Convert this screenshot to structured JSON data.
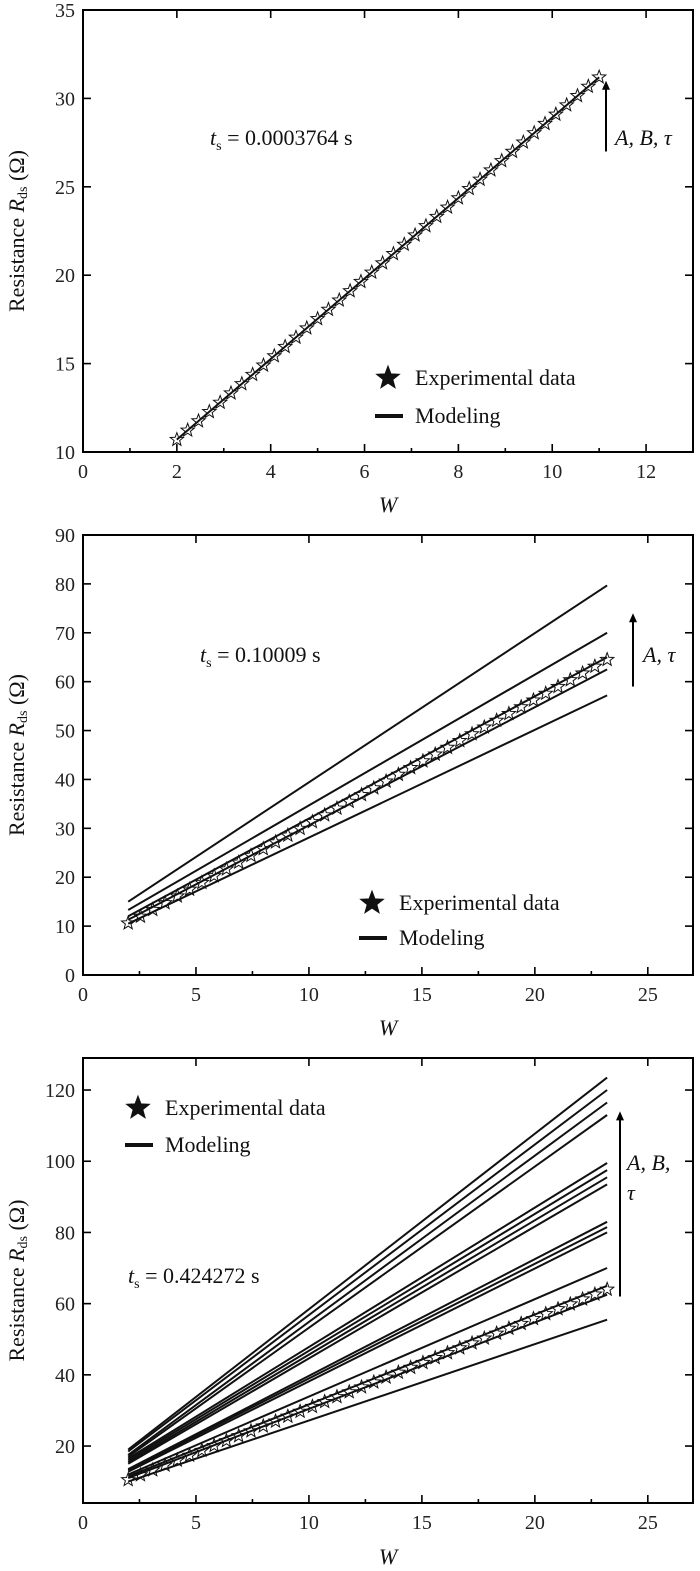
{
  "chart_data": [
    {
      "type": "line",
      "xlabel": "W",
      "ylabel_prefix": "Resistance ",
      "ylabel_var": "R",
      "ylabel_sub": "ds",
      "ylabel_unit": " (Ω)",
      "xlim": [
        0,
        13
      ],
      "ylim": [
        10,
        35
      ],
      "xticks": [
        "0",
        "2",
        "4",
        "6",
        "8",
        "10",
        "12"
      ],
      "xtick_values": [
        0,
        2,
        4,
        6,
        8,
        10,
        12
      ],
      "yticks": [
        "10",
        "15",
        "20",
        "25",
        "30",
        "35"
      ],
      "ytick_values": [
        10,
        15,
        20,
        25,
        30,
        35
      ],
      "annotation_var": "t",
      "annotation_sub": "s",
      "annotation_value": " = 0.0003764 s",
      "arrow_label_lines": [
        "A, B, τ"
      ],
      "arrow_range": [
        27,
        31
      ],
      "legend": [
        "Experimental data",
        "Modeling"
      ],
      "legend_position": "bottom-right",
      "experimental": {
        "x_start": 2,
        "x_end": 11,
        "points": 40,
        "y_start": 10.7,
        "y_end": 31.2
      },
      "model_lines": [
        {
          "x": [
            2,
            11
          ],
          "y": [
            10.7,
            31.2
          ]
        }
      ]
    },
    {
      "type": "line",
      "xlabel": "W",
      "ylabel_prefix": "Resistance ",
      "ylabel_var": "R",
      "ylabel_sub": "ds",
      "ylabel_unit": " (Ω)",
      "xlim": [
        0,
        27
      ],
      "ylim": [
        0,
        90
      ],
      "xticks": [
        "0",
        "5",
        "10",
        "15",
        "20",
        "25"
      ],
      "xtick_values": [
        0,
        5,
        10,
        15,
        20,
        25
      ],
      "yticks": [
        "0",
        "10",
        "20",
        "30",
        "40",
        "50",
        "60",
        "70",
        "80",
        "90"
      ],
      "ytick_values": [
        0,
        10,
        20,
        30,
        40,
        50,
        60,
        70,
        80,
        90
      ],
      "annotation_var": "t",
      "annotation_sub": "s",
      "annotation_value": " = 0.10009 s",
      "arrow_label_lines": [
        "A, τ"
      ],
      "arrow_range": [
        59,
        74
      ],
      "legend": [
        "Experimental data",
        "Modeling"
      ],
      "legend_position": "bottom-right",
      "experimental": {
        "x_start": 2,
        "x_end": 23.2,
        "points": 40,
        "y_start": 10.6,
        "y_end": 64.5
      },
      "model_lines": [
        {
          "x": [
            2,
            23.2
          ],
          "y": [
            15.0,
            79.7
          ]
        },
        {
          "x": [
            2,
            23.2
          ],
          "y": [
            13.3,
            70.0
          ]
        },
        {
          "x": [
            2,
            23.2
          ],
          "y": [
            12.0,
            65.0
          ]
        },
        {
          "x": [
            2,
            23.2
          ],
          "y": [
            11.3,
            62.5
          ]
        },
        {
          "x": [
            2,
            23.2
          ],
          "y": [
            10.5,
            57.2
          ]
        }
      ]
    },
    {
      "type": "line",
      "xlabel": "W",
      "ylabel_prefix": "Resistance ",
      "ylabel_var": "R",
      "ylabel_sub": "ds",
      "ylabel_unit": " (Ω)",
      "xlim": [
        0,
        27
      ],
      "ylim": [
        4,
        129
      ],
      "xticks": [
        "0",
        "5",
        "10",
        "15",
        "20",
        "25"
      ],
      "xtick_values": [
        0,
        5,
        10,
        15,
        20,
        25
      ],
      "yticks": [
        "20",
        "40",
        "60",
        "80",
        "100",
        "120"
      ],
      "ytick_values": [
        20,
        40,
        60,
        80,
        100,
        120
      ],
      "annotation_var": "t",
      "annotation_sub": "s",
      "annotation_value": " = 0.424272 s",
      "arrow_label_lines": [
        "A, B,",
        "τ"
      ],
      "arrow_range": [
        62,
        114
      ],
      "legend": [
        "Experimental data",
        "Modeling"
      ],
      "legend_position": "top-left",
      "experimental": {
        "x_start": 2,
        "x_end": 23.2,
        "points": 40,
        "y_start": 10.5,
        "y_end": 64.0
      },
      "model_lines": [
        {
          "x": [
            2,
            23.2
          ],
          "y": [
            19.0,
            123.5
          ]
        },
        {
          "x": [
            2,
            23.2
          ],
          "y": [
            18.5,
            120.0
          ]
        },
        {
          "x": [
            2,
            23.2
          ],
          "y": [
            17.5,
            116.5
          ]
        },
        {
          "x": [
            2,
            23.2
          ],
          "y": [
            17.0,
            113.0
          ]
        },
        {
          "x": [
            2,
            23.2
          ],
          "y": [
            16.5,
            99.5
          ]
        },
        {
          "x": [
            2,
            23.2
          ],
          "y": [
            16.0,
            97.5
          ]
        },
        {
          "x": [
            2,
            23.2
          ],
          "y": [
            15.5,
            95.5
          ]
        },
        {
          "x": [
            2,
            23.2
          ],
          "y": [
            15.0,
            93.5
          ]
        },
        {
          "x": [
            2,
            23.2
          ],
          "y": [
            13.5,
            83.0
          ]
        },
        {
          "x": [
            2,
            23.2
          ],
          "y": [
            13.2,
            81.5
          ]
        },
        {
          "x": [
            2,
            23.2
          ],
          "y": [
            12.8,
            80.0
          ]
        },
        {
          "x": [
            2,
            23.2
          ],
          "y": [
            12.0,
            70.0
          ]
        },
        {
          "x": [
            2,
            23.2
          ],
          "y": [
            11.5,
            65.0
          ]
        },
        {
          "x": [
            2,
            23.2
          ],
          "y": [
            11.0,
            62.5
          ]
        },
        {
          "x": [
            2,
            23.2
          ],
          "y": [
            10.0,
            55.5
          ]
        }
      ]
    }
  ]
}
